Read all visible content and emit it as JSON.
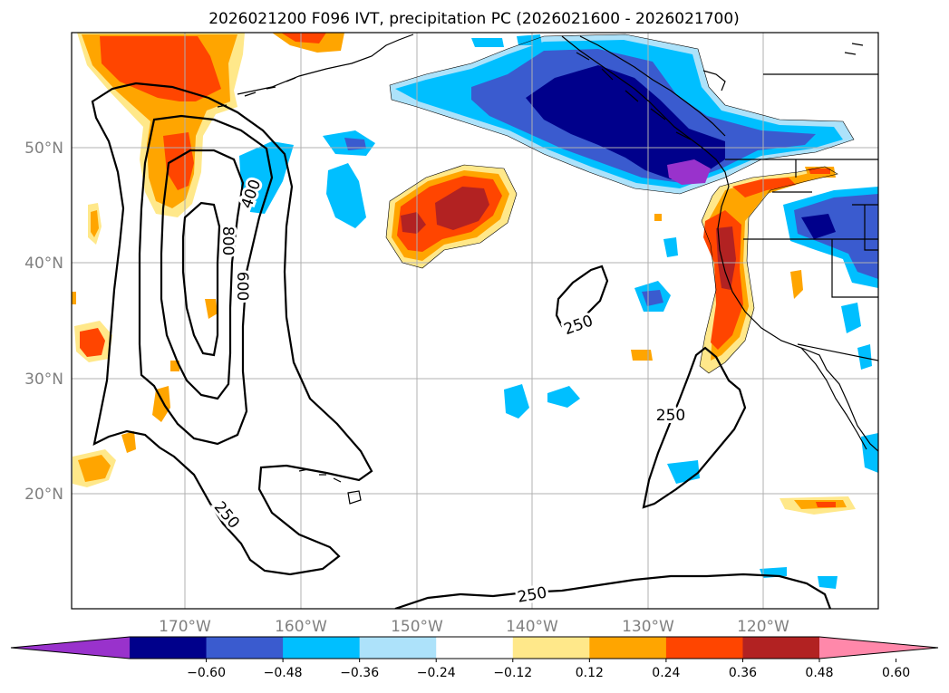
{
  "title": "2026021200 F096 IVT, precipitation PC (2026021600 - 2026021700)",
  "lon_labels": [
    "170°W",
    "160°W",
    "150°W",
    "140°W",
    "130°W",
    "120°W"
  ],
  "lat_labels": [
    "50°N",
    "40°N",
    "30°N",
    "20°N"
  ],
  "colorbar": {
    "tick_labels": [
      "-0.60",
      "-0.48",
      "-0.36",
      "-0.24",
      "-0.12",
      "0.12",
      "0.24",
      "0.36",
      "0.48",
      "0.60"
    ],
    "bin_colors": [
      "#9932CC",
      "#00008B",
      "#3A5BCF",
      "#00BFFF",
      "#ADE2FA",
      "#FFFFFF",
      "#FFE88A",
      "#FFA500",
      "#FF4500",
      "#B22222",
      "#FF88AA"
    ]
  },
  "contour_labels": [
    "800",
    "600",
    "400",
    "250",
    "250",
    "250",
    "250"
  ],
  "colors": {
    "purple": "#9932CC",
    "navy": "#00008B",
    "royal": "#3A5BCF",
    "sky": "#00BFFF",
    "light_blue": "#ADE2FA",
    "light_yellow": "#FFE88A",
    "orange": "#FFA500",
    "red_orange": "#FF4500",
    "firebrick": "#B22222",
    "pink": "#FF88AA"
  }
}
